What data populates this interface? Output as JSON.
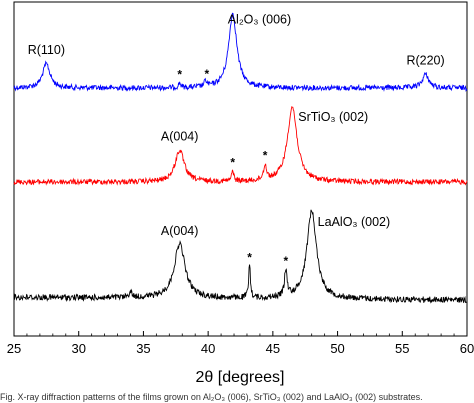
{
  "chart_data": {
    "type": "line",
    "xlabel": "2θ [degrees]",
    "ylabel": "",
    "xlim": [
      25,
      60
    ],
    "xticks": [
      25,
      30,
      35,
      40,
      45,
      50,
      55,
      60
    ],
    "grid": false,
    "series": [
      {
        "color": "#0000ff",
        "peaks": [
          {
            "x": 27.5,
            "height": 0.3,
            "width": 0.35
          },
          {
            "x": 37.8,
            "height": 0.06,
            "width": 0.1
          },
          {
            "x": 39.8,
            "height": 0.07,
            "width": 0.12
          },
          {
            "x": 41.9,
            "height": 0.93,
            "width": 0.38
          },
          {
            "x": 56.8,
            "height": 0.17,
            "width": 0.3
          }
        ],
        "annotations": [
          {
            "text": "R(110)",
            "x": 27.5,
            "kind": "label"
          },
          {
            "text": "Al₂O₃ (006)",
            "x": 41.9,
            "kind": "label"
          },
          {
            "text": "R(220)",
            "x": 56.8,
            "kind": "label"
          },
          {
            "text": "*",
            "x": 37.8,
            "kind": "star"
          },
          {
            "text": "*",
            "x": 39.9,
            "kind": "star"
          }
        ]
      },
      {
        "color": "#ff0000",
        "peaks": [
          {
            "x": 37.8,
            "height": 0.42,
            "width": 0.42
          },
          {
            "x": 41.9,
            "height": 0.14,
            "width": 0.1
          },
          {
            "x": 44.4,
            "height": 0.2,
            "width": 0.14
          },
          {
            "x": 46.5,
            "height": 1.0,
            "width": 0.45
          }
        ],
        "annotations": [
          {
            "text": "A(004)",
            "x": 37.8,
            "kind": "label"
          },
          {
            "text": "SrTiO₃ (002)",
            "x": 46.5,
            "kind": "label"
          },
          {
            "text": "*",
            "x": 41.9,
            "kind": "star"
          },
          {
            "text": "*",
            "x": 44.4,
            "kind": "star"
          }
        ]
      },
      {
        "color": "#000000",
        "peaks": [
          {
            "x": 34.0,
            "height": 0.06,
            "width": 0.15
          },
          {
            "x": 37.8,
            "height": 0.62,
            "width": 0.5
          },
          {
            "x": 43.2,
            "height": 0.38,
            "width": 0.08
          },
          {
            "x": 46.0,
            "height": 0.3,
            "width": 0.12
          },
          {
            "x": 48.0,
            "height": 1.0,
            "width": 0.45
          }
        ],
        "annotations": [
          {
            "text": "A(004)",
            "x": 37.8,
            "kind": "label"
          },
          {
            "text": "LaAlO₃ (002)",
            "x": 48.0,
            "kind": "label"
          },
          {
            "text": "*",
            "x": 43.2,
            "kind": "star"
          },
          {
            "text": "*",
            "x": 46.0,
            "kind": "star"
          }
        ]
      }
    ]
  },
  "caption": "Fig. X-ray diffraction patterns of the films grown on Al₂O₃ (006), SrTiO₃ (002) and LaAlO₃ (002) substrates."
}
